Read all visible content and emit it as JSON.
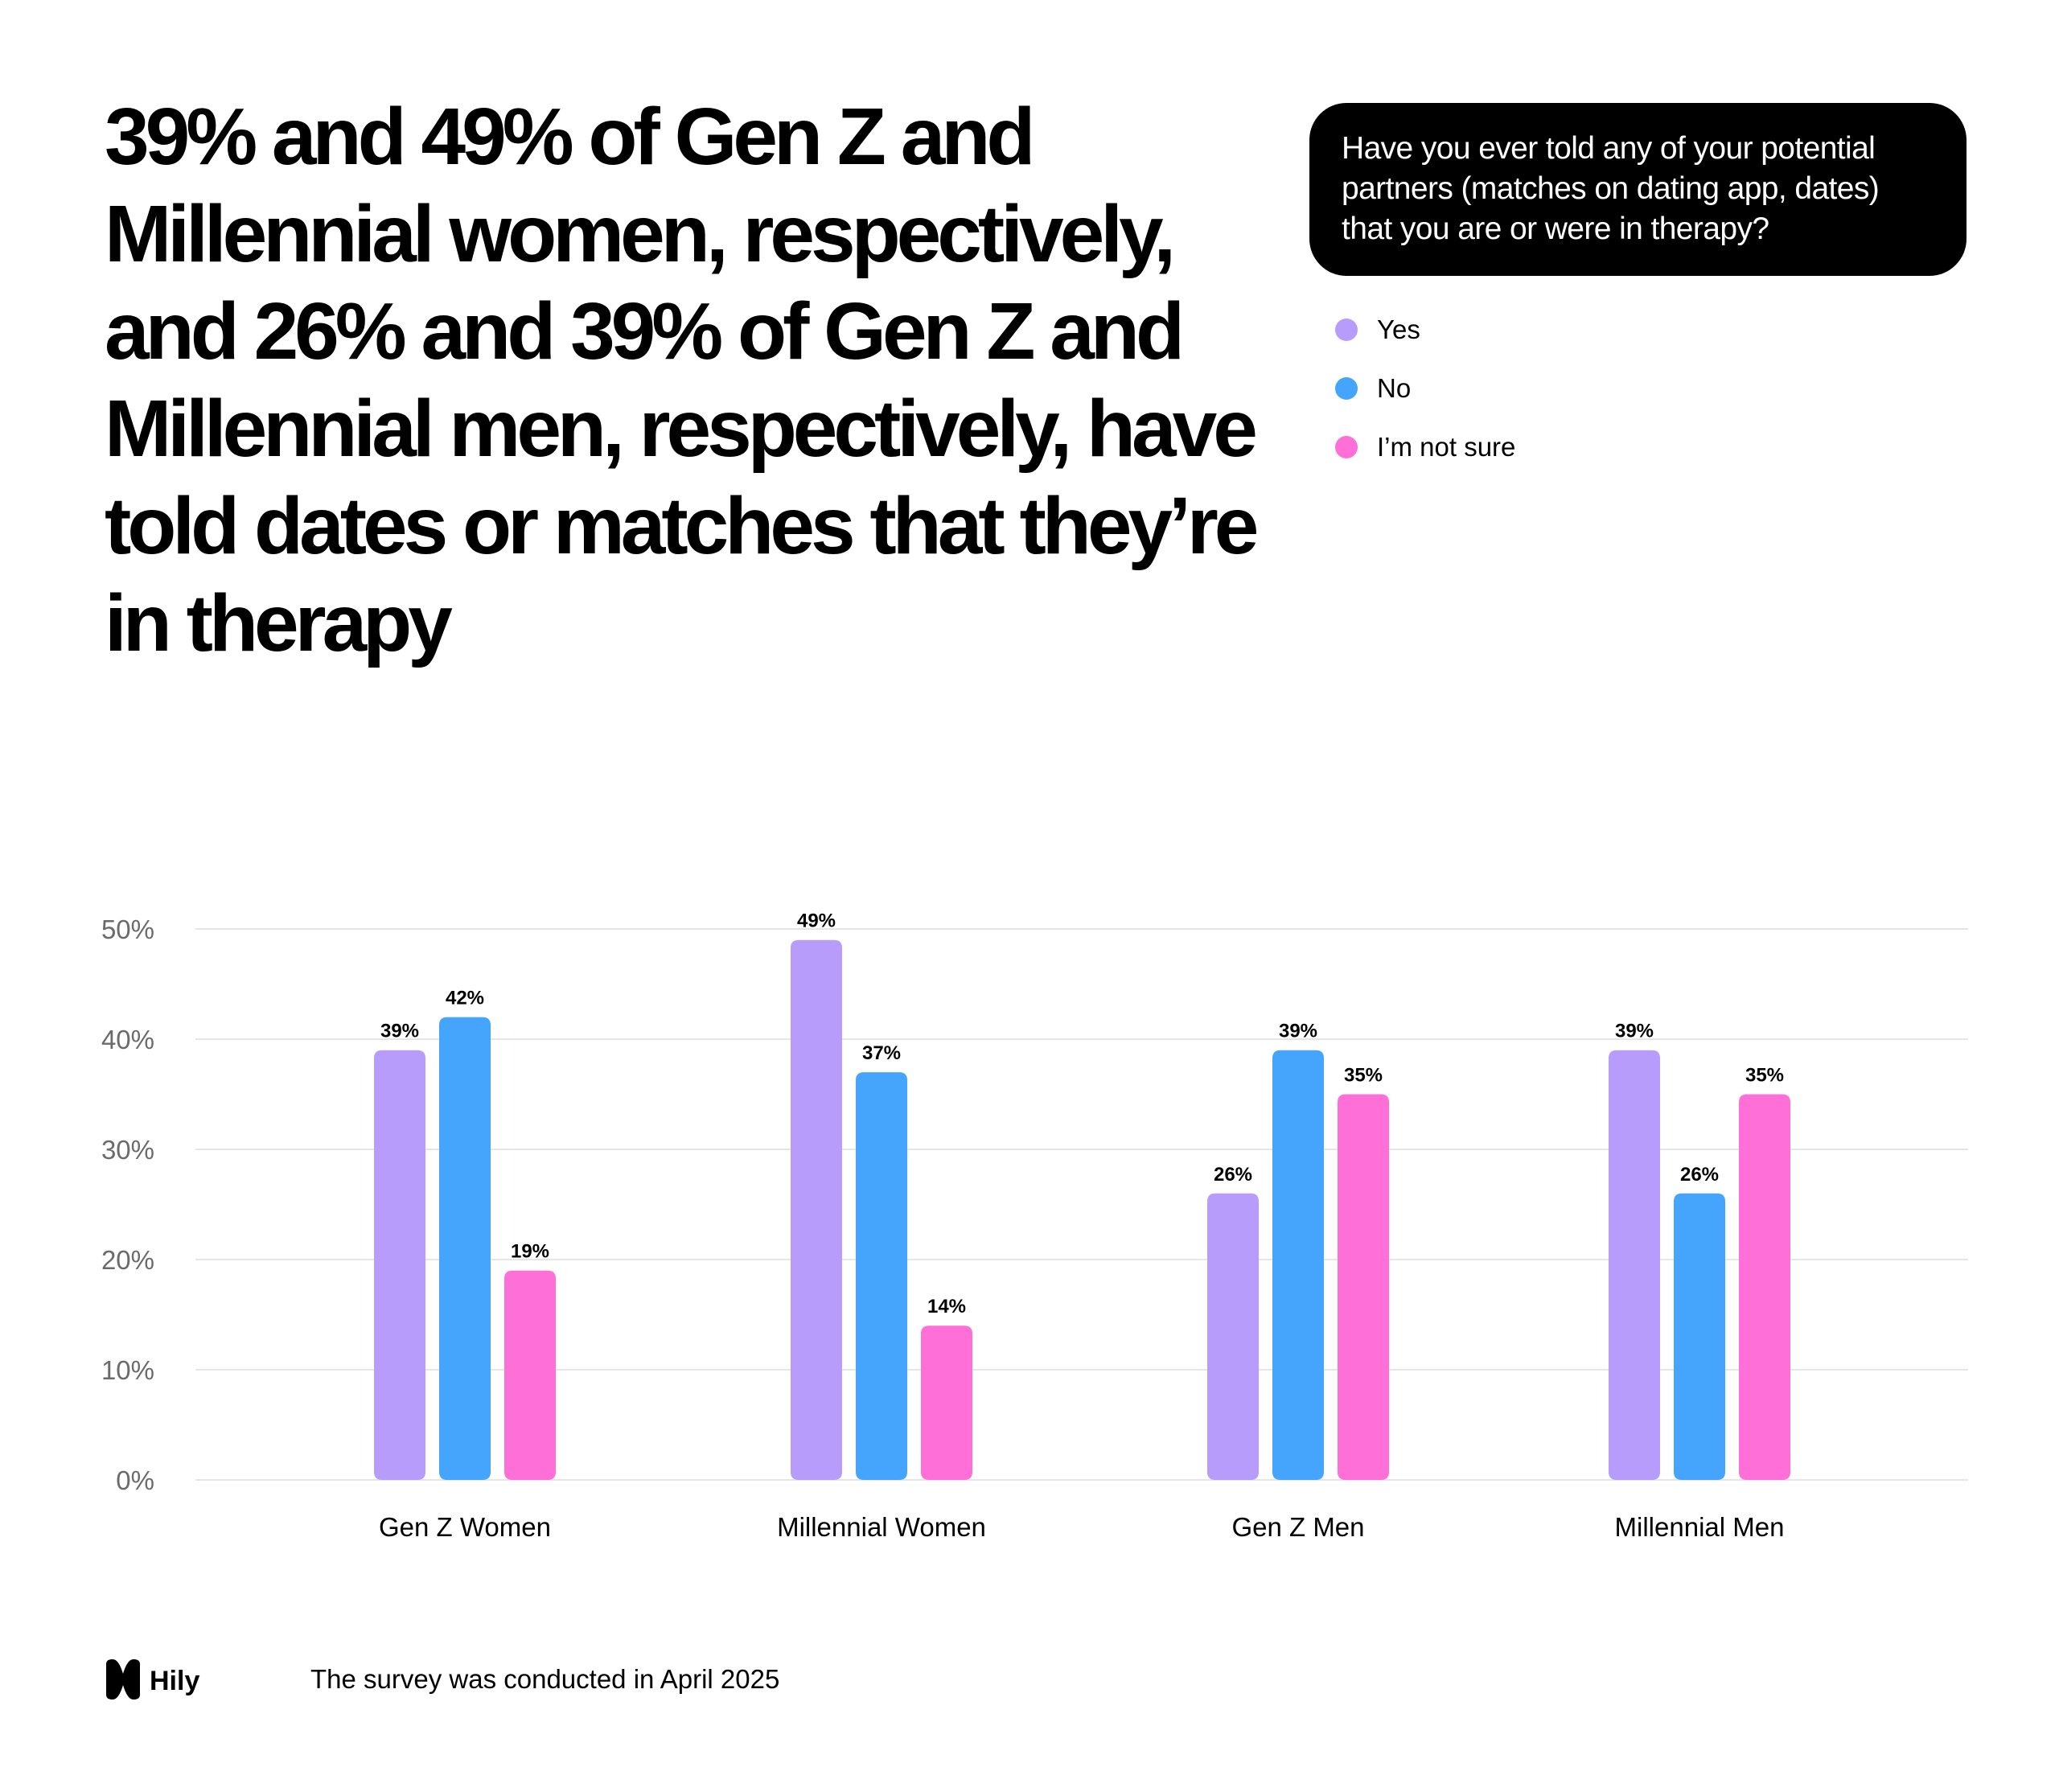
{
  "headline": "39% and 49% of Gen Z and Millennial women, respectively, and 26% and 39% of Gen Z and Millennial men, respectively, have told dates or matches that they’re in therapy",
  "question": "Have you ever told any of your potential partners (matches on dating app, dates) that you are or were in therapy?",
  "legend": [
    {
      "label": "Yes",
      "color": "#b89cfb"
    },
    {
      "label": "No",
      "color": "#45a5fd"
    },
    {
      "label": "I’m not sure",
      "color": "#ff6fd8"
    }
  ],
  "chart_data": {
    "type": "bar",
    "title": "",
    "xlabel": "",
    "ylabel": "",
    "categories": [
      "Gen Z Women",
      "Millennial Women",
      "Gen Z Men",
      "Millennial Men"
    ],
    "series": [
      {
        "name": "Yes",
        "color": "#b89cfb",
        "values": [
          39,
          49,
          26,
          39
        ],
        "labels": [
          "39%",
          "49%",
          "26%",
          "39%"
        ]
      },
      {
        "name": "No",
        "color": "#45a5fd",
        "values": [
          42,
          37,
          39,
          26
        ],
        "labels": [
          "42%",
          "37%",
          "39%",
          "26%"
        ]
      },
      {
        "name": "I’m not sure",
        "color": "#ff6fd8",
        "values": [
          19,
          14,
          35,
          35
        ],
        "labels": [
          "19%",
          "14%",
          "35%",
          "35%"
        ]
      }
    ],
    "ylim": [
      0,
      50
    ],
    "yticks": [
      0,
      10,
      20,
      30,
      40,
      50
    ],
    "ytick_labels": [
      "0%",
      "10%",
      "20%",
      "30%",
      "40%",
      "50%"
    ],
    "grid": true,
    "legend_position": "top-right"
  },
  "brand": {
    "name": "Hily",
    "logo_icon": "hily-logo-icon"
  },
  "footer": {
    "note": "The survey was conducted in April 2025"
  }
}
